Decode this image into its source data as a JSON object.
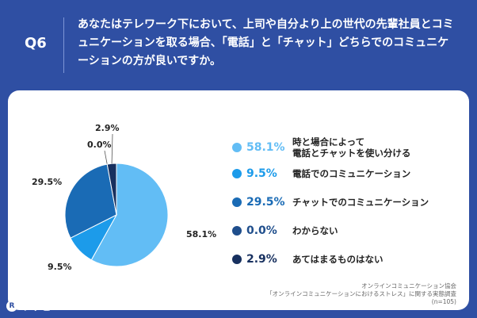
{
  "header": {
    "badge": "Q6",
    "question": "あなたはテレワーク下において、上司や自分より上の世代の先輩社員とコミュニケーションを取る場合、「電話」と「チャット」どちらでのコミュニケーションの方が良いですか。"
  },
  "chart_data": {
    "type": "pie",
    "slices": [
      {
        "label": "時と場合によって\n電話とチャットを使い分ける",
        "value": 58.1,
        "pct_label": "58.1%",
        "color": "#62bdf5"
      },
      {
        "label": "電話でのコミュニケーション",
        "value": 9.5,
        "pct_label": "9.5%",
        "color": "#1c9bea"
      },
      {
        "label": "チャットでのコミュニケーション",
        "value": 29.5,
        "pct_label": "29.5%",
        "color": "#1a6bb5"
      },
      {
        "label": "わからない",
        "value": 0.0,
        "pct_label": "0.0%",
        "color": "#1f4e8c"
      },
      {
        "label": "あてはまるものはない",
        "value": 2.9,
        "pct_label": "2.9%",
        "color": "#17305f"
      }
    ]
  },
  "source": {
    "line1": "オンラインコミュニケーション協会",
    "line2": "「オンラインコミュニケーションにおけるストレス」に関する実態調査",
    "line3": "(n=105)"
  },
  "logo": {
    "text": "リサピー",
    "mark": "R"
  }
}
